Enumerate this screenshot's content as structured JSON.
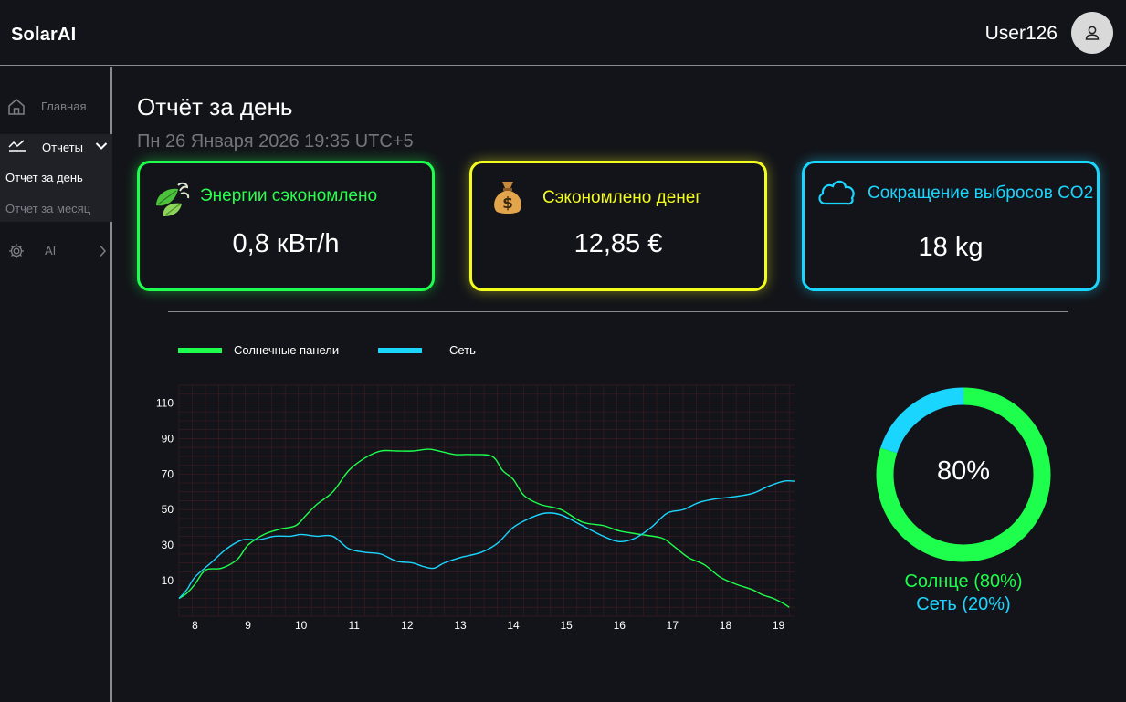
{
  "app": {
    "brand": "SolarAI",
    "user_name": "User126"
  },
  "sidebar": {
    "items": [
      {
        "label": "Главная",
        "icon": "home-icon"
      },
      {
        "label": "Отчеты",
        "icon": "chart-line-icon",
        "expanded": true,
        "children": [
          {
            "label": "Отчет за день",
            "active": true
          },
          {
            "label": "Отчет за месяц"
          }
        ]
      },
      {
        "label": "AI",
        "icon": "chip-icon"
      }
    ]
  },
  "page": {
    "title": "Отчёт за день",
    "subtitle": "Пн 26 Января 2026 19:35 UTC+5"
  },
  "cards": {
    "energy": {
      "title": "Энергии сэкономлено",
      "value": "0,8 кВт/h",
      "color": "#1dff4c",
      "icon": "leaves-icon"
    },
    "money": {
      "title": "Сэкономлено денег",
      "value": "12,85 €",
      "color": "#f3fc1c",
      "icon": "money-bag-icon"
    },
    "co2": {
      "title": "Сокращение выбросов CO2",
      "value": "18 kg",
      "color": "#1ad6ff",
      "icon": "cloud-icon"
    }
  },
  "legend": {
    "solar": "Солнечные панели",
    "grid": "Сеть"
  },
  "donut": {
    "center": "80%",
    "solar_caption": "Солнце (80%)",
    "grid_caption": "Сеть (20%)",
    "solar_share": 0.8,
    "grid_share": 0.2
  },
  "chart_data": [
    {
      "type": "line",
      "title": "",
      "xlabel": "",
      "ylabel": "",
      "x_ticks": [
        "8",
        "9",
        "10",
        "11",
        "12",
        "13",
        "14",
        "15",
        "16",
        "17",
        "18",
        "19"
      ],
      "y_ticks": [
        "10",
        "30",
        "50",
        "70",
        "90",
        "110"
      ],
      "xlim": [
        7.7,
        19.3
      ],
      "ylim": [
        -10,
        120
      ],
      "grid": true,
      "legend_position": "top-left",
      "series": [
        {
          "name": "Солнечные панели",
          "color": "#1dff4c",
          "x": [
            7.7,
            7.85,
            8,
            8.2,
            8.5,
            8.8,
            9,
            9.3,
            9.6,
            9.9,
            10.1,
            10.3,
            10.6,
            10.9,
            11.2,
            11.5,
            11.8,
            12.1,
            12.4,
            12.6,
            12.9,
            13.2,
            13.6,
            13.8,
            14,
            14.2,
            14.5,
            14.9,
            15.3,
            15.7,
            16,
            16.4,
            16.8,
            17,
            17.3,
            17.6,
            17.9,
            18.2,
            18.5,
            18.7,
            18.9,
            19.1,
            19.2
          ],
          "y": [
            0,
            3,
            8,
            16,
            17,
            22,
            30,
            36,
            39,
            41,
            47,
            53,
            60,
            72,
            79,
            83,
            83,
            83,
            84,
            83,
            81,
            81,
            80,
            72,
            67,
            58,
            53,
            50,
            43,
            41,
            38,
            36,
            34,
            30,
            23,
            19,
            12,
            8,
            5,
            2,
            0,
            -3,
            -5
          ]
        },
        {
          "name": "Сеть",
          "color": "#1ad6ff",
          "x": [
            7.7,
            7.85,
            8,
            8.3,
            8.6,
            8.9,
            9.2,
            9.5,
            9.8,
            10,
            10.3,
            10.6,
            10.9,
            11.2,
            11.5,
            11.8,
            12.1,
            12.3,
            12.5,
            12.7,
            13,
            13.4,
            13.7,
            14,
            14.3,
            14.6,
            14.9,
            15.3,
            15.7,
            16,
            16.3,
            16.6,
            16.9,
            17.2,
            17.5,
            17.8,
            18.1,
            18.5,
            18.8,
            19.1,
            19.3
          ],
          "y": [
            0,
            5,
            12,
            20,
            28,
            33,
            33,
            35,
            35,
            36,
            35,
            35,
            28,
            26,
            25,
            21,
            20,
            18,
            17,
            20,
            23,
            26,
            31,
            40,
            45,
            48,
            47,
            41,
            35,
            32,
            34,
            40,
            48,
            50,
            54,
            56,
            57,
            59,
            63,
            66,
            66
          ]
        }
      ]
    },
    {
      "type": "pie",
      "categories": [
        "Солнце",
        "Сеть"
      ],
      "values": [
        80,
        20
      ],
      "colors": [
        "#1dff4c",
        "#1ad6ff"
      ]
    }
  ]
}
